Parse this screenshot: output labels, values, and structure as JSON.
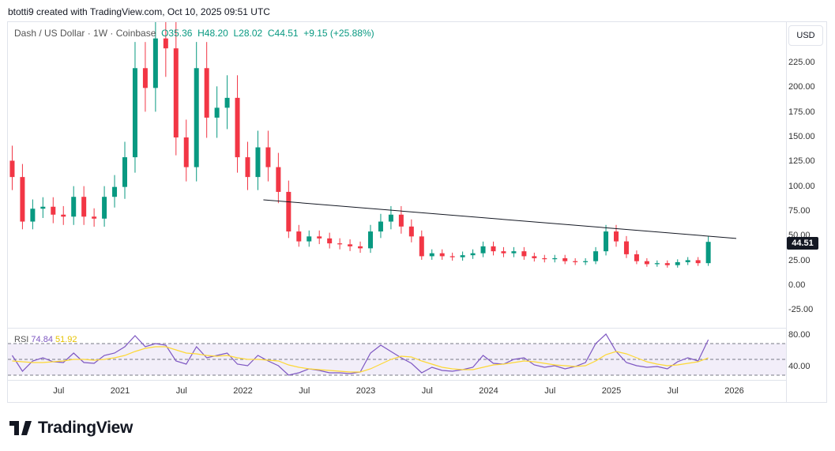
{
  "credit": "btotti9 created with TradingView.com, Oct 10, 2025 09:51 UTC",
  "legend": {
    "symbol": "Dash / US Dollar · 1W · Coinbase",
    "open": "O35.36",
    "high": "H48.20",
    "low": "L28.02",
    "close": "C44.51",
    "change": "+9.15 (+25.88%)"
  },
  "currency_button": "USD",
  "last_price": "44.51",
  "rsi_legend": {
    "label": "RSI",
    "rsi": "74.84",
    "ma": "51.92"
  },
  "brand": "TradingView",
  "colors": {
    "up": "#089981",
    "down": "#f23645",
    "rsi": "#7e57c2",
    "rsi_ma": "#fdd835",
    "trendline": "#131722"
  },
  "chart_data": [
    {
      "type": "candlestick",
      "title": "Dash / US Dollar · 1W · Coinbase",
      "ylim": [
        -37,
        267
      ],
      "price_ticks": [
        "225.00",
        "200.00",
        "175.00",
        "150.00",
        "125.00",
        "100.00",
        "75.00",
        "50.00",
        "25.00",
        "0.00",
        "-25.00"
      ],
      "price_tick_values": [
        225,
        200,
        175,
        150,
        125,
        100,
        75,
        50,
        25,
        0,
        -25
      ],
      "time_ticks": [
        "Jul",
        "2021",
        "Jul",
        "2022",
        "Jul",
        "2023",
        "Jul",
        "2024",
        "Jul",
        "2025",
        "Jul",
        "2026"
      ],
      "time_tick_dates": [
        "2020-07",
        "2021-01",
        "2021-07",
        "2022-01",
        "2022-07",
        "2023-01",
        "2023-07",
        "2024-01",
        "2024-07",
        "2025-01",
        "2025-07",
        "2026-01"
      ],
      "start": "2020-02",
      "step": "month",
      "closes": [
        110,
        65,
        78,
        80,
        72,
        70,
        90,
        70,
        68,
        90,
        100,
        130,
        220,
        200,
        250,
        240,
        150,
        120,
        220,
        170,
        180,
        190,
        130,
        110,
        140,
        120,
        95,
        55,
        45,
        50,
        48,
        43,
        42,
        40,
        38,
        55,
        65,
        72,
        60,
        50,
        30,
        33,
        30,
        29,
        31,
        33,
        40,
        35,
        33,
        35,
        30,
        28,
        27,
        28,
        25,
        24,
        25,
        35,
        55,
        45,
        32,
        25,
        22,
        23,
        21,
        24,
        26,
        23,
        44.51
      ],
      "trendline": {
        "from": [
          "2022-03",
          87
        ],
        "to": [
          "2025-10",
          48
        ]
      }
    },
    {
      "type": "line",
      "title": "RSI",
      "ylim": [
        20,
        90
      ],
      "price_ticks": [
        "80.00",
        "40.00"
      ],
      "price_tick_values": [
        80,
        40
      ],
      "bands": [
        70,
        50,
        30
      ],
      "series": [
        {
          "name": "RSI",
          "values": [
            55,
            35,
            48,
            52,
            47,
            46,
            58,
            46,
            45,
            55,
            58,
            66,
            80,
            66,
            70,
            68,
            48,
            44,
            66,
            52,
            55,
            58,
            44,
            42,
            55,
            48,
            42,
            30,
            33,
            38,
            36,
            33,
            33,
            32,
            34,
            58,
            68,
            60,
            52,
            45,
            33,
            40,
            36,
            35,
            37,
            40,
            55,
            45,
            44,
            50,
            52,
            43,
            40,
            42,
            38,
            41,
            46,
            70,
            82,
            60,
            46,
            42,
            40,
            41,
            38,
            47,
            52,
            48,
            74.84
          ]
        },
        {
          "name": "MA",
          "values": [
            48,
            47,
            46,
            46,
            47,
            48,
            50,
            50,
            49,
            50,
            52,
            55,
            60,
            64,
            66,
            66,
            62,
            58,
            57,
            55,
            54,
            55,
            52,
            50,
            50,
            49,
            48,
            43,
            40,
            38,
            37,
            36,
            35,
            34,
            34,
            38,
            44,
            50,
            54,
            53,
            48,
            44,
            40,
            38,
            37,
            37,
            40,
            43,
            44,
            46,
            48,
            47,
            45,
            43,
            42,
            41,
            42,
            48,
            56,
            60,
            57,
            52,
            47,
            44,
            42,
            43,
            45,
            47,
            51.92
          ]
        }
      ]
    }
  ]
}
